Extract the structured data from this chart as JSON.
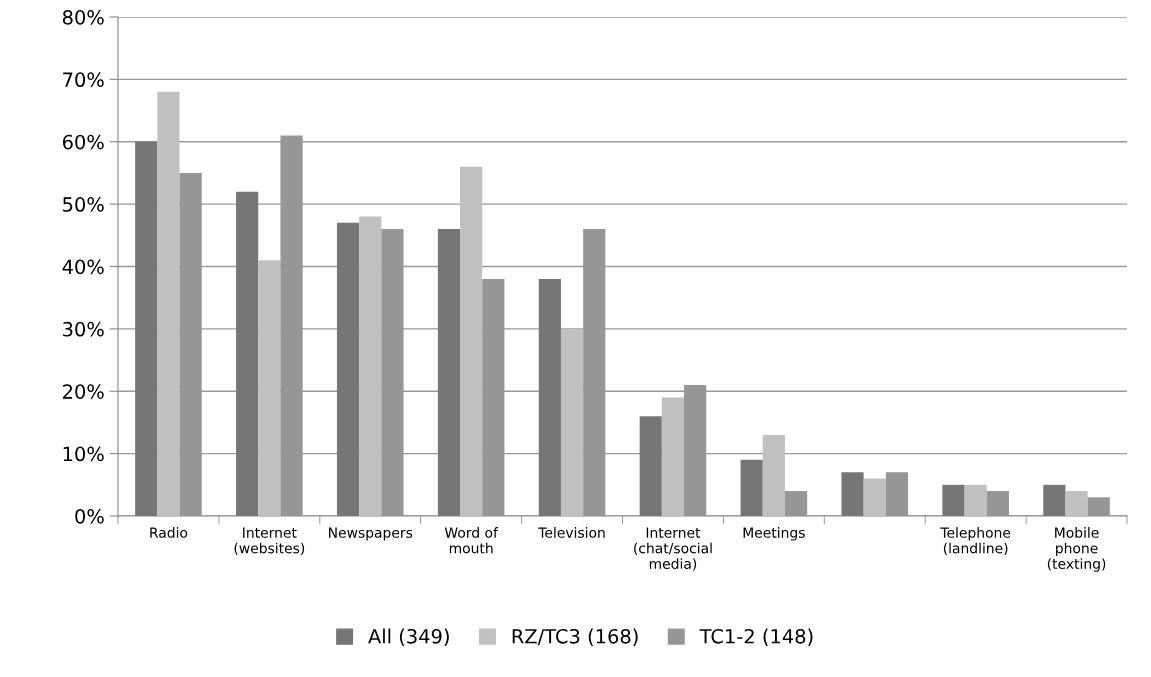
{
  "chart_data": {
    "type": "bar",
    "categories": [
      "Radio",
      "Internet\n(websites)",
      "Newspapers",
      "Word of\nmouth",
      "Television",
      "Internet\n(chat/social\nmedia)",
      "Meetings",
      null,
      "Telephone\n(landline)",
      "Mobile\nphone\n(texting)"
    ],
    "series": [
      {
        "name": "All (349)",
        "color": "#767676",
        "values": [
          60,
          52,
          47,
          46,
          38,
          16,
          9,
          7,
          5,
          5
        ]
      },
      {
        "name": "RZ/TC3 (168)",
        "color": "#c0c0c0",
        "values": [
          68,
          41,
          48,
          56,
          30,
          19,
          13,
          6,
          5,
          4
        ]
      },
      {
        "name": "TC1-2 (148)",
        "color": "#969696",
        "values": [
          55,
          61,
          46,
          38,
          46,
          21,
          4,
          7,
          4,
          3
        ]
      }
    ],
    "ylim": [
      0,
      80
    ],
    "yticks": [
      {
        "value": 0,
        "label": "0%"
      },
      {
        "value": 10,
        "label": "10%"
      },
      {
        "value": 20,
        "label": "20%"
      },
      {
        "value": 30,
        "label": "30%"
      },
      {
        "value": 40,
        "label": "40%"
      },
      {
        "value": 50,
        "label": "50%"
      },
      {
        "value": 60,
        "label": "60%"
      },
      {
        "value": 70,
        "label": "70%"
      },
      {
        "value": 80,
        "label": "80%"
      }
    ],
    "grid": "y",
    "legend": "bottom"
  }
}
